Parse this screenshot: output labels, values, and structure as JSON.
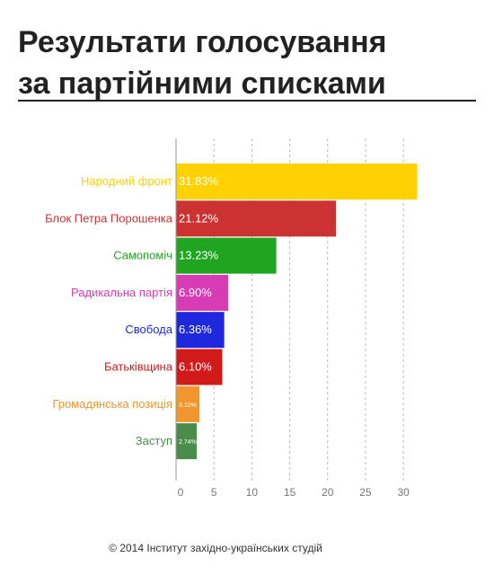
{
  "title": {
    "line1": "Результати голосування",
    "line2": "за партійними списками"
  },
  "footer": "© 2014 Інститут західно-українських студій",
  "chart_data": {
    "type": "bar",
    "orientation": "horizontal",
    "title": "",
    "xlabel": "",
    "ylabel": "",
    "xlim": [
      0,
      32
    ],
    "x_ticks": [
      0,
      5,
      10,
      15,
      20,
      25,
      30
    ],
    "grid": "vertical-dashed",
    "categories": [
      "Народний фронт",
      "Блок Петра Порошенка",
      "Самопоміч",
      "Радикальна партія",
      "Свобода",
      "Батьківщина",
      "Громадянська позиція",
      "Заступ"
    ],
    "values": [
      31.83,
      21.12,
      13.23,
      6.9,
      6.36,
      6.1,
      3.1,
      2.74
    ],
    "value_labels": [
      "31.83%",
      "21.12%",
      "13.23%",
      "6.90%",
      "6.36%",
      "6.10%",
      "3.10%",
      "2.74%"
    ],
    "colors": [
      "#ffd200",
      "#cd3232",
      "#1fa51f",
      "#d63cb4",
      "#1e28dc",
      "#d21a1a",
      "#f0962d",
      "#4a8c4a"
    ]
  }
}
